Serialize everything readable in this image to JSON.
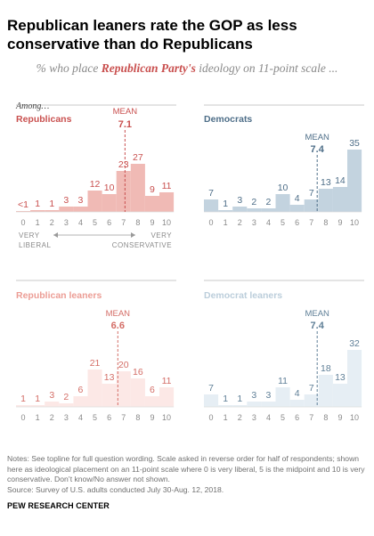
{
  "title": "Republican leaners rate the GOP as less conservative than do Republicans",
  "subtitle": {
    "prefix": "% who place ",
    "highlight": "Republican Party's",
    "suffix": " ideology on 11-point scale ..."
  },
  "among_label": "Among…",
  "mean_label": "MEAN",
  "scale_labels": {
    "left_top": "VERY",
    "left_bottom": "LIBERAL",
    "right_top": "VERY",
    "right_bottom": "CONSERVATIVE"
  },
  "notes": "Notes: See topline for full question wording. Scale asked in reverse order for half of respondents; shown here as ideological placement on an 11-point scale where 0 is very liberal, 5 is the midpoint and 10 is very conservative. Don’t know/No answer not shown.\nSource: Survey of U.S. adults conducted July 30-Aug. 12, 2018.",
  "logo": "PEW RESEARCH CENTER",
  "chart_data": [
    {
      "type": "bar",
      "name": "Republicans",
      "categories": [
        "0",
        "1",
        "2",
        "3",
        "4",
        "5",
        "6",
        "7",
        "8",
        "9",
        "10"
      ],
      "values": [
        0.5,
        1,
        1,
        3,
        3,
        12,
        10,
        23,
        27,
        9,
        11
      ],
      "value_labels": [
        "<1",
        "1",
        "1",
        "3",
        "3",
        "12",
        "10",
        "23",
        "27",
        "9",
        "11"
      ],
      "mean": 7.1,
      "mean_text": "7.1",
      "color": "#f0bab5",
      "label_color": "#c9504f"
    },
    {
      "type": "bar",
      "name": "Democrats",
      "categories": [
        "0",
        "1",
        "2",
        "3",
        "4",
        "5",
        "6",
        "7",
        "8",
        "9",
        "10"
      ],
      "values": [
        7,
        1,
        3,
        2,
        2,
        10,
        4,
        7,
        13,
        14,
        35
      ],
      "value_labels": [
        "7",
        "1",
        "3",
        "2",
        "2",
        "10",
        "4",
        "7",
        "13",
        "14",
        "35"
      ],
      "mean": 7.4,
      "mean_text": "7.4",
      "color": "#c3d3df",
      "label_color": "#4e6e88"
    },
    {
      "type": "bar",
      "name": "Republican leaners",
      "categories": [
        "0",
        "1",
        "2",
        "3",
        "4",
        "5",
        "6",
        "7",
        "8",
        "9",
        "10"
      ],
      "values": [
        1,
        1,
        3,
        2,
        6,
        21,
        13,
        20,
        16,
        6,
        11
      ],
      "value_labels": [
        "1",
        "1",
        "3",
        "2",
        "6",
        "21",
        "13",
        "20",
        "16",
        "6",
        "11"
      ],
      "mean": 6.6,
      "mean_text": "6.6",
      "color": "#fce8e6",
      "label_color": "#d46e67",
      "name_color": "#ec9d95"
    },
    {
      "type": "bar",
      "name": "Democrat leaners",
      "categories": [
        "0",
        "1",
        "2",
        "3",
        "4",
        "5",
        "6",
        "7",
        "8",
        "9",
        "10"
      ],
      "values": [
        7,
        1,
        1,
        3,
        3,
        11,
        4,
        7,
        18,
        13,
        32
      ],
      "value_labels": [
        "7",
        "1",
        "1",
        "3",
        "3",
        "11",
        "4",
        "7",
        "18",
        "13",
        "32"
      ],
      "mean": 7.4,
      "mean_text": "7.4",
      "color": "#e6eef4",
      "label_color": "#5f7f97",
      "name_color": "#bccedb"
    }
  ]
}
